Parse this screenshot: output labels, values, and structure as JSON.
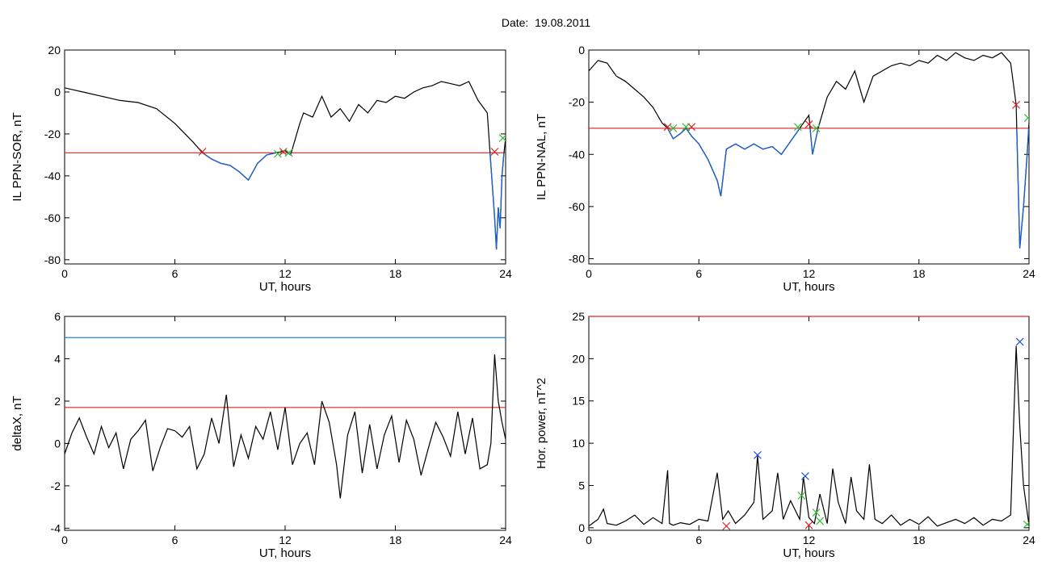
{
  "figure": {
    "title": "Date:  19.08.2011"
  },
  "colors": {
    "trace": "#000000",
    "below": "#1f5fc8",
    "threshold_red": "#e02020",
    "threshold_blue": "#1a8ad0",
    "marker_red": "#e02020",
    "marker_green": "#30c030",
    "marker_blue": "#2050d0"
  },
  "chart_data": [
    {
      "id": "p1",
      "type": "line",
      "xlabel": "UT, hours",
      "ylabel": "IL PPN-SOR, nT",
      "xlim": [
        0,
        24
      ],
      "ylim": [
        -82,
        20
      ],
      "xticks": [
        0,
        6,
        12,
        18,
        24
      ],
      "yticks": [
        20,
        0,
        -20,
        -40,
        -60,
        -80
      ],
      "thresholds": [
        {
          "value": -29,
          "color": "red"
        }
      ],
      "series": [
        {
          "x": [
            0,
            0.5,
            1,
            2,
            3,
            4,
            5,
            6,
            7,
            7.5,
            8,
            8.5,
            9,
            9.5,
            10,
            10.5,
            11,
            11.5,
            12,
            12.3,
            12.8,
            13,
            13.5,
            14,
            14.5,
            15,
            15.5,
            16,
            16.5,
            17,
            17.5,
            18,
            18.5,
            19,
            19.5,
            20,
            20.5,
            21,
            21.5,
            22,
            22.5,
            23,
            23.2,
            23.4,
            23.5,
            23.6,
            23.7,
            23.8,
            23.9,
            24
          ],
          "y": [
            2,
            1,
            0,
            -2,
            -4,
            -5,
            -8,
            -15,
            -24,
            -29,
            -32,
            -34,
            -35,
            -38,
            -42,
            -34,
            -30,
            -29,
            -28,
            -30,
            -15,
            -10,
            -12,
            -2,
            -12,
            -8,
            -14,
            -6,
            -10,
            -4,
            -5,
            -2,
            -3,
            0,
            2,
            3,
            5,
            4,
            3,
            5,
            -4,
            -10,
            -35,
            -60,
            -75,
            -55,
            -65,
            -40,
            -30,
            -22
          ]
        }
      ],
      "markers": [
        {
          "x": 7.5,
          "y": -28.5,
          "color": "red"
        },
        {
          "x": 11.9,
          "y": -28.5,
          "color": "red"
        },
        {
          "x": 12.2,
          "y": -29,
          "color": "green"
        },
        {
          "x": 11.6,
          "y": -29.5,
          "color": "green"
        },
        {
          "x": 23.4,
          "y": -28.5,
          "color": "red"
        },
        {
          "x": 23.85,
          "y": -22,
          "color": "green"
        }
      ]
    },
    {
      "id": "p2",
      "type": "line",
      "xlabel": "UT, hours",
      "ylabel": "IL PPN-NAL, nT",
      "xlim": [
        0,
        24
      ],
      "ylim": [
        -82,
        0
      ],
      "xticks": [
        0,
        6,
        12,
        18,
        24
      ],
      "yticks": [
        0,
        -20,
        -40,
        -60,
        -80
      ],
      "thresholds": [
        {
          "value": -30,
          "color": "red"
        }
      ],
      "series": [
        {
          "x": [
            0,
            0.5,
            1,
            1.5,
            2,
            2.5,
            3,
            3.5,
            4,
            4.3,
            4.6,
            5,
            5.3,
            5.6,
            6,
            6.5,
            7,
            7.2,
            7.5,
            8,
            8.5,
            9,
            9.5,
            10,
            10.5,
            11,
            11.5,
            12,
            12.2,
            12.5,
            13,
            13.5,
            14,
            14.5,
            15,
            15.5,
            16,
            16.5,
            17,
            17.5,
            18,
            18.5,
            19,
            19.5,
            20,
            20.5,
            21,
            21.5,
            22,
            22.5,
            23,
            23.3,
            23.5,
            23.7,
            23.9,
            24
          ],
          "y": [
            -8,
            -4,
            -5,
            -10,
            -12,
            -15,
            -18,
            -22,
            -28,
            -30,
            -34,
            -32,
            -30,
            -33,
            -36,
            -42,
            -50,
            -56,
            -38,
            -36,
            -38,
            -36,
            -38,
            -37,
            -40,
            -35,
            -30,
            -25,
            -40,
            -30,
            -18,
            -12,
            -15,
            -8,
            -20,
            -10,
            -8,
            -6,
            -5,
            -6,
            -4,
            -5,
            -2,
            -4,
            -1,
            -3,
            -4,
            -2,
            -3,
            -1,
            -5,
            -21,
            -76,
            -60,
            -40,
            -28
          ]
        }
      ],
      "markers": [
        {
          "x": 4.3,
          "y": -29.5,
          "color": "red"
        },
        {
          "x": 5.6,
          "y": -29.5,
          "color": "red"
        },
        {
          "x": 12.0,
          "y": -28.5,
          "color": "red"
        },
        {
          "x": 4.6,
          "y": -30,
          "color": "green"
        },
        {
          "x": 5.3,
          "y": -29.5,
          "color": "green"
        },
        {
          "x": 11.4,
          "y": -29.5,
          "color": "green"
        },
        {
          "x": 12.4,
          "y": -30,
          "color": "green"
        },
        {
          "x": 23.3,
          "y": -21,
          "color": "red"
        },
        {
          "x": 23.95,
          "y": -26,
          "color": "green"
        }
      ]
    },
    {
      "id": "p3",
      "type": "line",
      "xlabel": "UT, hours",
      "ylabel": "deltaX, nT",
      "xlim": [
        0,
        24
      ],
      "ylim": [
        -4.1,
        6
      ],
      "xticks": [
        0,
        6,
        12,
        18,
        24
      ],
      "yticks": [
        6,
        4,
        2,
        0,
        -2,
        -4
      ],
      "thresholds": [
        {
          "value": 5.0,
          "color": "blue"
        },
        {
          "value": 1.7,
          "color": "red"
        }
      ],
      "series": [
        {
          "x": [
            0,
            0.4,
            0.8,
            1.2,
            1.6,
            2,
            2.4,
            2.8,
            3.2,
            3.6,
            4,
            4.4,
            4.8,
            5.2,
            5.6,
            6,
            6.4,
            6.8,
            7.2,
            7.6,
            8,
            8.4,
            8.8,
            9.2,
            9.6,
            10,
            10.4,
            10.8,
            11.2,
            11.6,
            12,
            12.4,
            12.8,
            13.2,
            13.6,
            14,
            14.4,
            14.8,
            15,
            15.4,
            15.8,
            16.2,
            16.6,
            17,
            17.4,
            17.8,
            18.2,
            18.6,
            19,
            19.4,
            19.8,
            20.2,
            20.6,
            21,
            21.4,
            21.8,
            22.2,
            22.6,
            23,
            23.2,
            23.4,
            23.6,
            23.8,
            24
          ],
          "y": [
            -0.5,
            0.5,
            1.2,
            0.3,
            -0.5,
            0.8,
            -0.2,
            0.5,
            -1.2,
            0.2,
            0.6,
            1.1,
            -1.3,
            -0.2,
            0.7,
            0.6,
            0.3,
            0.8,
            -1.2,
            -0.5,
            1.2,
            0,
            2.3,
            -1.1,
            0.4,
            -0.7,
            0.8,
            0.2,
            1.5,
            -0.3,
            1.7,
            -1,
            0,
            0.5,
            -1,
            2,
            1,
            -1,
            -2.6,
            0.4,
            1.5,
            -1.4,
            0.9,
            -1.2,
            0.4,
            1.3,
            -0.9,
            1.1,
            0.2,
            -1.5,
            -0.2,
            1,
            0.3,
            -0.6,
            1.5,
            -0.5,
            1.2,
            -1.2,
            -1,
            0,
            4.2,
            2,
            1,
            0.2
          ]
        }
      ],
      "markers": []
    },
    {
      "id": "p4",
      "type": "line",
      "xlabel": "UT, hours",
      "ylabel": "Hor. power, nT^2",
      "xlim": [
        0,
        24
      ],
      "ylim": [
        -0.3,
        25
      ],
      "xticks": [
        0,
        6,
        12,
        18,
        24
      ],
      "yticks": [
        25,
        20,
        15,
        10,
        5,
        0
      ],
      "thresholds": [
        {
          "value": 25,
          "color": "red"
        }
      ],
      "series": [
        {
          "x": [
            0,
            0.5,
            0.8,
            1,
            1.5,
            2,
            2.5,
            3,
            3.5,
            4,
            4.3,
            4.4,
            4.6,
            5,
            5.5,
            6,
            6.5,
            7,
            7.3,
            7.6,
            8,
            8.5,
            9,
            9.2,
            9.5,
            10,
            10.3,
            10.6,
            11,
            11.5,
            11.7,
            12,
            12.3,
            12.6,
            13,
            13.3,
            13.6,
            14,
            14.3,
            14.6,
            15,
            15.3,
            15.6,
            16,
            16.5,
            17,
            17.5,
            18,
            18.5,
            19,
            19.5,
            20,
            20.5,
            21,
            21.5,
            22,
            22.5,
            23,
            23.3,
            23.5,
            23.7,
            24
          ],
          "y": [
            0.2,
            1,
            2.2,
            0.5,
            0.3,
            0.8,
            1.5,
            0.4,
            1.2,
            0.5,
            6.8,
            0.5,
            0.3,
            0.6,
            0.4,
            1,
            0.8,
            6.5,
            1,
            2,
            0.5,
            1.5,
            3,
            8.5,
            1,
            2,
            6.5,
            1,
            3.2,
            1,
            6,
            1.2,
            0.5,
            4,
            0.5,
            7,
            3,
            0.5,
            6,
            2,
            1,
            7.5,
            1,
            0.5,
            1.5,
            0.3,
            1,
            0.4,
            1.3,
            0.2,
            0.6,
            1,
            0.5,
            1.2,
            0.3,
            1,
            0.8,
            1.5,
            21.5,
            12,
            5,
            0.3
          ]
        }
      ],
      "markers": [
        {
          "x": 9.2,
          "y": 8.6,
          "color": "blue"
        },
        {
          "x": 11.8,
          "y": 6.1,
          "color": "blue"
        },
        {
          "x": 23.5,
          "y": 22.0,
          "color": "blue"
        },
        {
          "x": 11.6,
          "y": 3.8,
          "color": "green"
        },
        {
          "x": 12.4,
          "y": 1.8,
          "color": "green"
        },
        {
          "x": 12.6,
          "y": 0.8,
          "color": "green"
        },
        {
          "x": 7.5,
          "y": 0.2,
          "color": "red"
        },
        {
          "x": 12.0,
          "y": 0.3,
          "color": "red"
        },
        {
          "x": 23.9,
          "y": 0.4,
          "color": "green"
        }
      ]
    }
  ]
}
